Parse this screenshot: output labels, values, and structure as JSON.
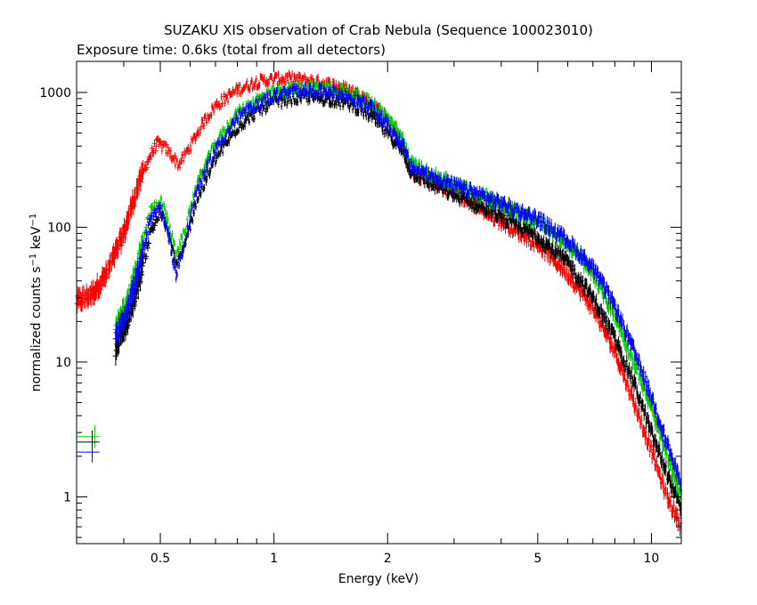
{
  "chart_data": {
    "type": "scatter",
    "title": "SUZAKU XIS observation of Crab Nebula (Sequence 100023010)",
    "subtitle": "Exposure time: 0.6ks (total from all detectors)",
    "xlabel": "Energy (keV)",
    "ylabel_main": "normalized counts s",
    "ylabel_sup1": "−1",
    "ylabel_mid": " keV",
    "ylabel_sup2": "−1",
    "x_scale": "log",
    "y_scale": "log",
    "xlim": [
      0.3,
      12
    ],
    "ylim": [
      0.45,
      1700
    ],
    "x_ticks": [
      {
        "value": 0.5,
        "label": "0.5"
      },
      {
        "value": 1,
        "label": "1"
      },
      {
        "value": 2,
        "label": "2"
      },
      {
        "value": 5,
        "label": "5"
      },
      {
        "value": 10,
        "label": "10"
      }
    ],
    "y_ticks": [
      {
        "value": 1,
        "label": "1"
      },
      {
        "value": 10,
        "label": "10"
      },
      {
        "value": 100,
        "label": "100"
      },
      {
        "value": 1000,
        "label": "1000"
      }
    ],
    "grid": false,
    "legend": "none",
    "series": [
      {
        "color": "#ff0000",
        "x": [
          0.3,
          0.33,
          0.36,
          0.4,
          0.43,
          0.46,
          0.49,
          0.52,
          0.56,
          0.6,
          0.65,
          0.7,
          0.8,
          0.9,
          1.0,
          1.1,
          1.3,
          1.5,
          1.7,
          1.9,
          2.1,
          2.2,
          2.3,
          2.6,
          3.0,
          3.5,
          4.0,
          5.0,
          6.0,
          7.0,
          8.0,
          9.0,
          10.0,
          11.0,
          12.0
        ],
        "y": [
          28,
          32,
          45,
          90,
          180,
          300,
          420,
          380,
          290,
          400,
          600,
          800,
          1050,
          1200,
          1250,
          1270,
          1200,
          1100,
          950,
          750,
          520,
          380,
          260,
          220,
          180,
          140,
          110,
          75,
          45,
          25,
          12,
          5,
          2.2,
          1.0,
          0.6
        ]
      },
      {
        "color": "#000000",
        "x": [
          0.38,
          0.41,
          0.44,
          0.47,
          0.5,
          0.52,
          0.55,
          0.58,
          0.62,
          0.7,
          0.8,
          0.9,
          1.0,
          1.2,
          1.4,
          1.6,
          1.8,
          2.0,
          2.2,
          2.3,
          2.6,
          3.0,
          3.5,
          4.0,
          5.0,
          6.0,
          7.0,
          8.0,
          9.0,
          10.0,
          11.0,
          12.0
        ],
        "y": [
          12,
          20,
          40,
          90,
          130,
          100,
          55,
          70,
          150,
          320,
          550,
          720,
          850,
          930,
          900,
          820,
          680,
          500,
          360,
          260,
          210,
          175,
          145,
          120,
          85,
          55,
          30,
          15,
          7,
          3,
          1.5,
          0.8
        ]
      },
      {
        "color": "#00cc00",
        "x": [
          0.38,
          0.41,
          0.44,
          0.47,
          0.5,
          0.52,
          0.55,
          0.58,
          0.62,
          0.7,
          0.8,
          0.9,
          1.0,
          1.2,
          1.4,
          1.6,
          1.8,
          2.0,
          2.2,
          2.3,
          2.6,
          3.0,
          3.5,
          4.0,
          5.0,
          6.0,
          7.0,
          8.0,
          9.0,
          10.0,
          11.0,
          12.0
        ],
        "y": [
          18,
          28,
          60,
          130,
          160,
          120,
          65,
          90,
          200,
          420,
          700,
          880,
          1000,
          1100,
          1080,
          980,
          850,
          650,
          450,
          300,
          250,
          210,
          175,
          150,
          110,
          75,
          45,
          22,
          10,
          4.5,
          2,
          1.0
        ]
      },
      {
        "color": "#0000ff",
        "x": [
          0.38,
          0.41,
          0.44,
          0.47,
          0.5,
          0.52,
          0.55,
          0.58,
          0.62,
          0.7,
          0.8,
          0.9,
          1.0,
          1.2,
          1.4,
          1.6,
          1.8,
          2.0,
          2.2,
          2.3,
          2.6,
          3.0,
          3.5,
          4.0,
          5.0,
          6.0,
          7.0,
          8.0,
          9.0,
          10.0,
          11.0,
          12.0
        ],
        "y": [
          16,
          25,
          50,
          110,
          140,
          100,
          45,
          75,
          180,
          380,
          650,
          820,
          950,
          1050,
          1020,
          920,
          780,
          580,
          400,
          280,
          240,
          205,
          175,
          150,
          115,
          80,
          50,
          26,
          12,
          5.5,
          2.5,
          1.2
        ]
      }
    ],
    "low_energy_points": [
      {
        "color": "#00cc00",
        "x_lo": 0.3,
        "x_hi": 0.345,
        "y": 2.8,
        "x_mark": 0.335,
        "y_lo": 2.3,
        "y_hi": 3.4
      },
      {
        "color": "#000000",
        "x_lo": 0.3,
        "x_hi": 0.345,
        "y": 2.55,
        "x_mark": 0.33,
        "y_lo": 2.1,
        "y_hi": 3.1
      },
      {
        "color": "#0000ff",
        "x_lo": 0.3,
        "x_hi": 0.345,
        "y": 2.15,
        "x_mark": 0.33,
        "y_lo": 1.8,
        "y_hi": 2.6
      }
    ]
  }
}
